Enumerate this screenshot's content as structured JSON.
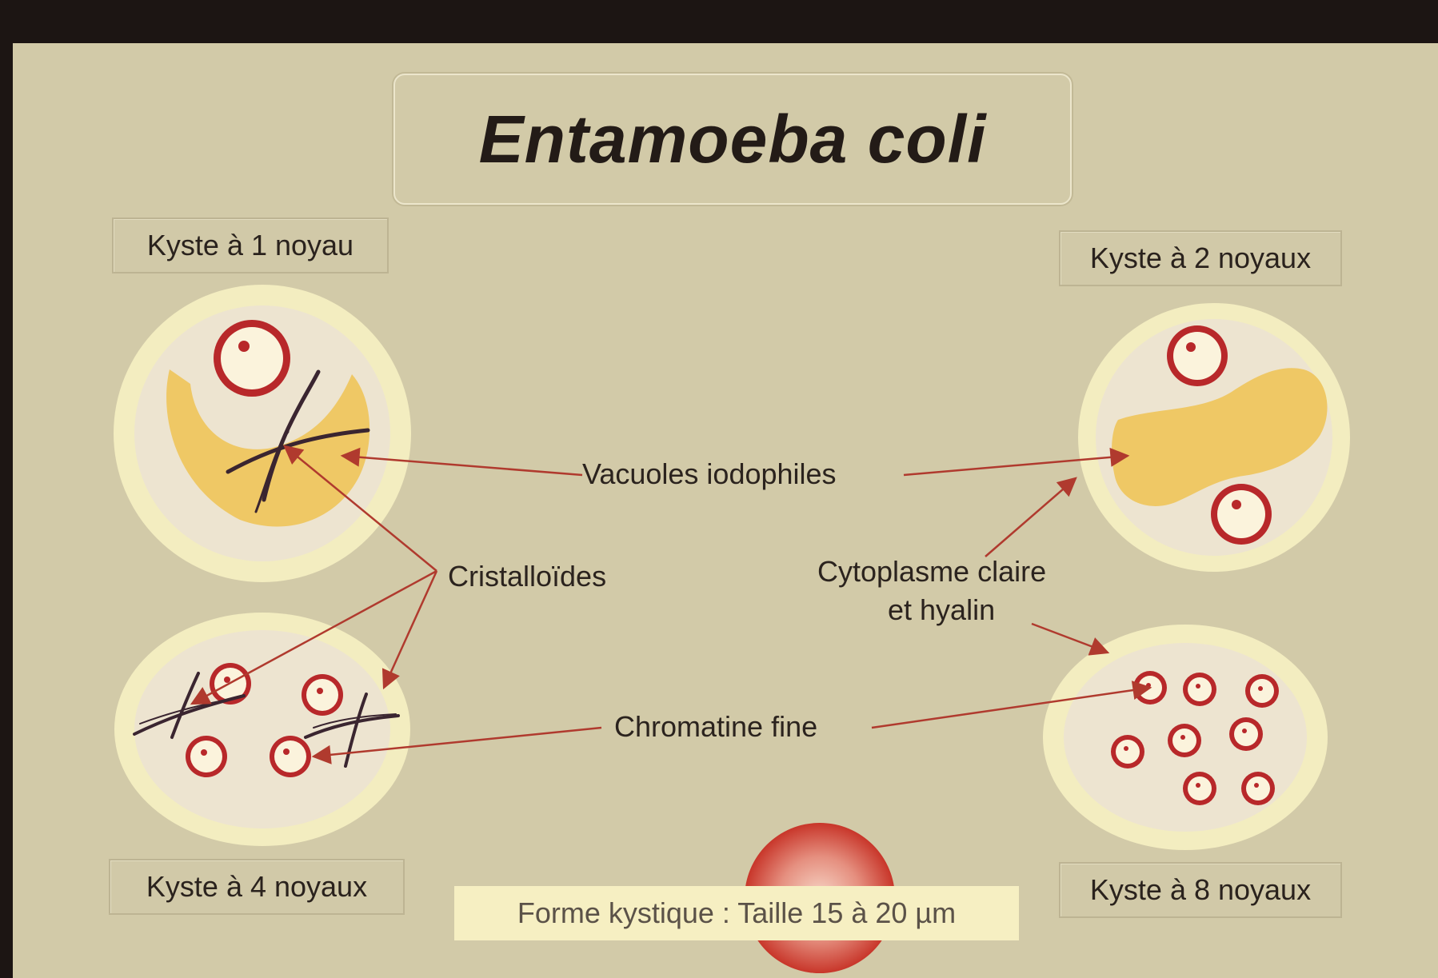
{
  "title": "Entamoeba coli",
  "cysts": [
    {
      "label": "Kyste à 1 noyau"
    },
    {
      "label": "Kyste à 2 noyaux"
    },
    {
      "label": "Kyste à 4 noyaux"
    },
    {
      "label": "Kyste à 8 noyaux"
    }
  ],
  "annotations": {
    "vacuoles": "Vacuoles iodophiles",
    "cristalloides": "Cristalloïdes",
    "cytoplasme_line1": "Cytoplasme claire",
    "cytoplasme_line2": "et hyalin",
    "chromatine": "Chromatine fine"
  },
  "size_caption": "Forme kystique : Taille 15 à 20 µm",
  "colors": {
    "background": "#d2caa8",
    "frame": "#1c1513",
    "cyst_rim": "#f3edc0",
    "cyst_body": "#ede4d0",
    "vacuole": "#efc865",
    "nucleus_ring": "#b8282a",
    "arrow": "#b03a2e"
  }
}
